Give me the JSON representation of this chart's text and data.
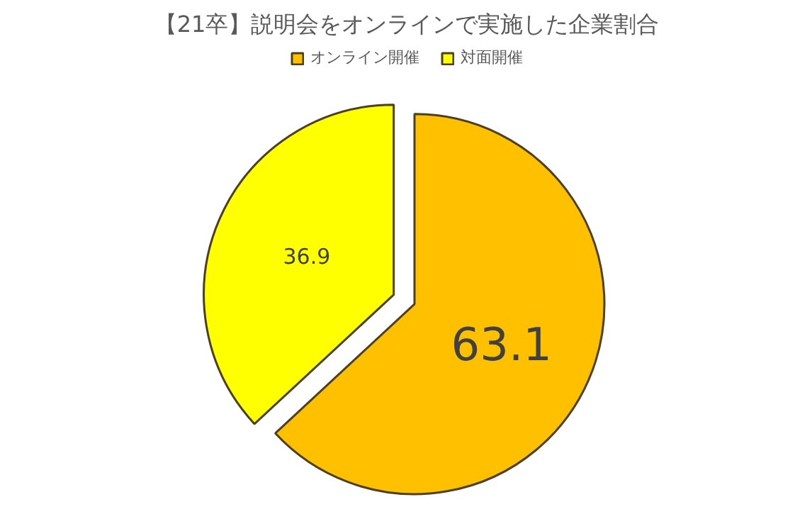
{
  "chart_data": {
    "type": "pie",
    "title": "【21卒】説明会をオンラインで実施した企業割合",
    "categories": [
      "オンライン開催",
      "対面開催"
    ],
    "values": [
      63.1,
      36.9
    ],
    "colors": [
      "#ffc000",
      "#ffff00"
    ],
    "data_labels": true,
    "legend": "top"
  }
}
